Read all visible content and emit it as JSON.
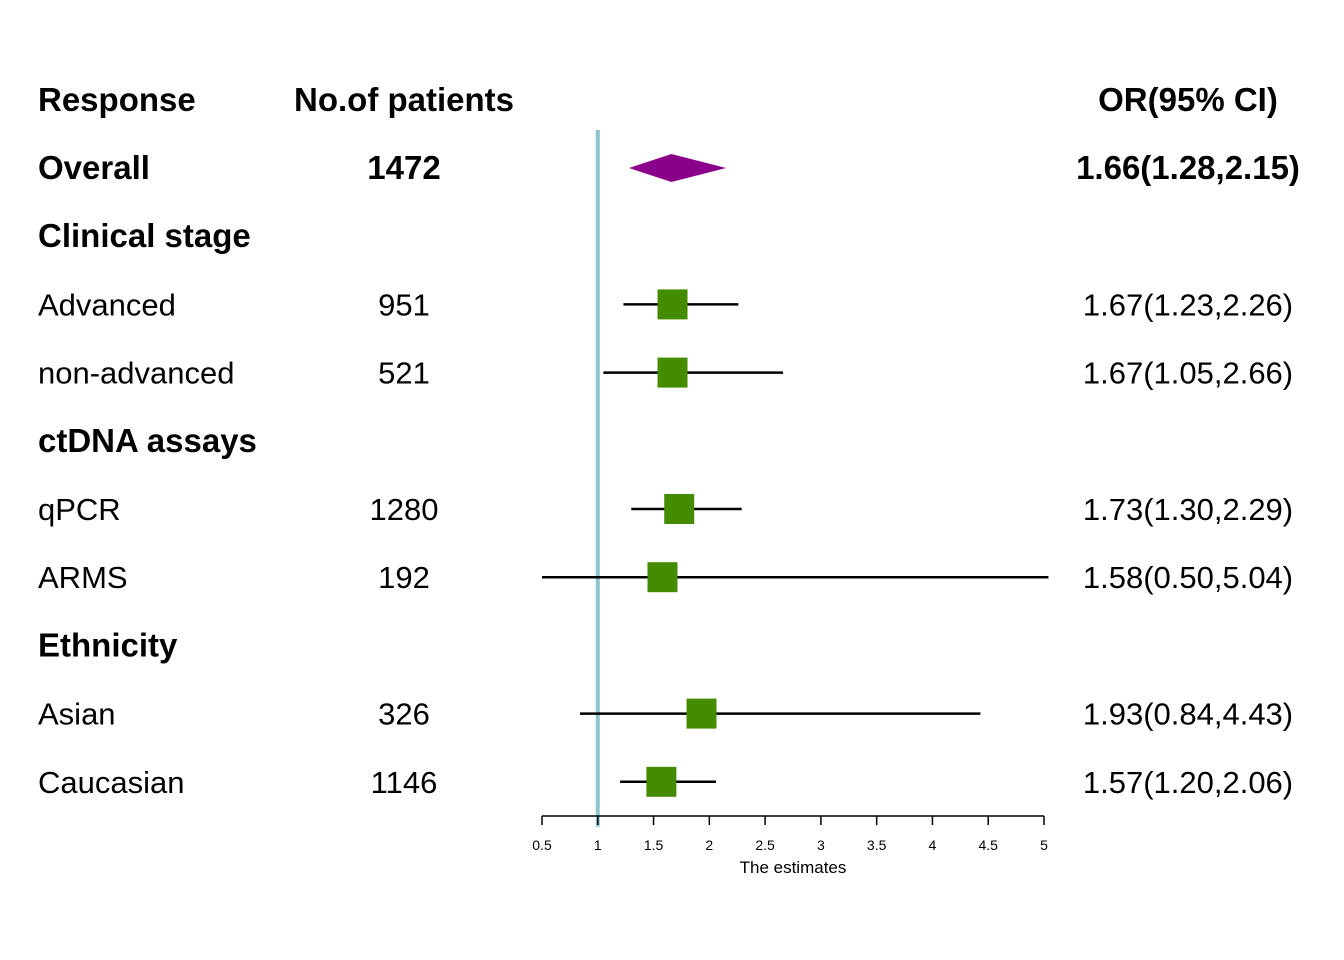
{
  "headers": {
    "response": "Response",
    "patients": "No.of patients",
    "or": "OR(95% CI)"
  },
  "chart_data": {
    "type": "forest",
    "xlabel": "The estimates",
    "xlim": [
      0.5,
      5
    ],
    "xticks": [
      0.5,
      1,
      1.5,
      2,
      2.5,
      3,
      3.5,
      4,
      4.5,
      5
    ],
    "reference_line": 1,
    "colors": {
      "summary": "#8B008B",
      "study": "#458B00",
      "reference": "#8CC6CC",
      "line": "#000000"
    },
    "rows": [
      {
        "label": "Overall",
        "n": "1472",
        "ci_text": "1.66(1.28,2.15)",
        "est": 1.66,
        "lo": 1.28,
        "hi": 2.15,
        "kind": "summary",
        "bold": true
      },
      {
        "label": "Clinical stage",
        "kind": "heading",
        "bold": true
      },
      {
        "label": "Advanced",
        "n": "951",
        "ci_text": "1.67(1.23,2.26)",
        "est": 1.67,
        "lo": 1.23,
        "hi": 2.26,
        "kind": "study"
      },
      {
        "label": "non-advanced",
        "n": "521",
        "ci_text": "1.67(1.05,2.66)",
        "est": 1.67,
        "lo": 1.05,
        "hi": 2.66,
        "kind": "study"
      },
      {
        "label": "ctDNA assays",
        "kind": "heading",
        "bold": true
      },
      {
        "label": "qPCR",
        "n": "1280",
        "ci_text": "1.73(1.30,2.29)",
        "est": 1.73,
        "lo": 1.3,
        "hi": 2.29,
        "kind": "study"
      },
      {
        "label": "ARMS",
        "n": "192",
        "ci_text": "1.58(0.50,5.04)",
        "est": 1.58,
        "lo": 0.5,
        "hi": 5.04,
        "kind": "study"
      },
      {
        "label": "Ethnicity",
        "kind": "heading",
        "bold": true
      },
      {
        "label": "Asian",
        "n": "326",
        "ci_text": "1.93(0.84,4.43)",
        "est": 1.93,
        "lo": 0.84,
        "hi": 4.43,
        "kind": "study"
      },
      {
        "label": "Caucasian",
        "n": "1146",
        "ci_text": "1.57(1.20,2.06)",
        "est": 1.57,
        "lo": 1.2,
        "hi": 2.06,
        "kind": "study"
      }
    ]
  }
}
